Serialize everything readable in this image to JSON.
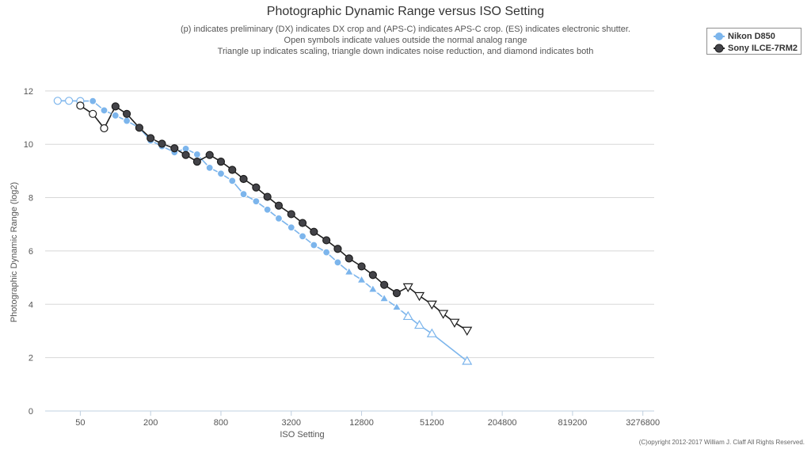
{
  "chart_data": {
    "type": "line",
    "title": "Photographic Dynamic Range versus ISO Setting",
    "subtitle_lines": [
      "(p) indicates preliminary (DX) indicates DX crop and (APS-C) indicates APS-C crop. (ES) indicates electronic shutter.",
      "Open symbols indicate values outside the normal analog range",
      "Triangle up indicates scaling, triangle down indicates noise reduction, and diamond indicates both"
    ],
    "xlabel": "ISO Setting",
    "ylabel": "Photographic Dynamic Range (log2)",
    "x_scale": "log2",
    "xlim": [
      25,
      4096000
    ],
    "x_ticks": [
      50,
      200,
      800,
      3200,
      12800,
      51200,
      204800,
      819200,
      3276800
    ],
    "ylim": [
      0,
      12.5
    ],
    "y_ticks": [
      0,
      2,
      4,
      6,
      8,
      10,
      12
    ],
    "grid": true,
    "legend_position": "top-right",
    "series": [
      {
        "name": "Nikon D850",
        "color": "#7cb5ec",
        "points": [
          {
            "x": 32,
            "y": 11.63,
            "m": "circle-open"
          },
          {
            "x": 40,
            "y": 11.63,
            "m": "circle-open"
          },
          {
            "x": 50,
            "y": 11.62,
            "m": "circle-open"
          },
          {
            "x": 64,
            "y": 11.62,
            "m": "circle"
          },
          {
            "x": 80,
            "y": 11.27,
            "m": "circle"
          },
          {
            "x": 100,
            "y": 11.08,
            "m": "circle"
          },
          {
            "x": 125,
            "y": 10.88,
            "m": "circle"
          },
          {
            "x": 160,
            "y": 10.62,
            "m": "circle"
          },
          {
            "x": 200,
            "y": 10.14,
            "m": "circle"
          },
          {
            "x": 250,
            "y": 9.93,
            "m": "circle"
          },
          {
            "x": 320,
            "y": 9.7,
            "m": "circle"
          },
          {
            "x": 400,
            "y": 9.83,
            "m": "circle"
          },
          {
            "x": 500,
            "y": 9.62,
            "m": "circle"
          },
          {
            "x": 640,
            "y": 9.12,
            "m": "circle"
          },
          {
            "x": 800,
            "y": 8.9,
            "m": "circle"
          },
          {
            "x": 1000,
            "y": 8.63,
            "m": "circle"
          },
          {
            "x": 1250,
            "y": 8.13,
            "m": "circle"
          },
          {
            "x": 1600,
            "y": 7.86,
            "m": "circle"
          },
          {
            "x": 2000,
            "y": 7.55,
            "m": "circle"
          },
          {
            "x": 2500,
            "y": 7.22,
            "m": "circle"
          },
          {
            "x": 3200,
            "y": 6.88,
            "m": "circle"
          },
          {
            "x": 4000,
            "y": 6.55,
            "m": "circle"
          },
          {
            "x": 5000,
            "y": 6.22,
            "m": "circle"
          },
          {
            "x": 6400,
            "y": 5.95,
            "m": "circle"
          },
          {
            "x": 8000,
            "y": 5.57,
            "m": "circle"
          },
          {
            "x": 10000,
            "y": 5.22,
            "m": "triangle-up"
          },
          {
            "x": 12800,
            "y": 4.92,
            "m": "triangle-up"
          },
          {
            "x": 16000,
            "y": 4.57,
            "m": "triangle-up"
          },
          {
            "x": 20000,
            "y": 4.22,
            "m": "triangle-up"
          },
          {
            "x": 25600,
            "y": 3.9,
            "m": "triangle-up"
          },
          {
            "x": 32000,
            "y": 3.55,
            "m": "triangle-up-open"
          },
          {
            "x": 40000,
            "y": 3.22,
            "m": "triangle-up-open"
          },
          {
            "x": 51200,
            "y": 2.9,
            "m": "triangle-up-open"
          },
          {
            "x": 102400,
            "y": 1.87,
            "m": "triangle-up-open"
          }
        ]
      },
      {
        "name": "Sony ILCE-7RM2",
        "color": "#434348",
        "points": [
          {
            "x": 50,
            "y": 11.45,
            "m": "circle-open"
          },
          {
            "x": 64,
            "y": 11.14,
            "m": "circle-open"
          },
          {
            "x": 80,
            "y": 10.6,
            "m": "circle-open"
          },
          {
            "x": 100,
            "y": 11.42,
            "m": "circle"
          },
          {
            "x": 125,
            "y": 11.14,
            "m": "circle"
          },
          {
            "x": 160,
            "y": 10.62,
            "m": "circle"
          },
          {
            "x": 200,
            "y": 10.23,
            "m": "circle"
          },
          {
            "x": 250,
            "y": 10.02,
            "m": "circle"
          },
          {
            "x": 320,
            "y": 9.85,
            "m": "circle"
          },
          {
            "x": 400,
            "y": 9.6,
            "m": "circle"
          },
          {
            "x": 500,
            "y": 9.35,
            "m": "circle"
          },
          {
            "x": 640,
            "y": 9.6,
            "m": "circle"
          },
          {
            "x": 800,
            "y": 9.35,
            "m": "circle"
          },
          {
            "x": 1000,
            "y": 9.04,
            "m": "circle"
          },
          {
            "x": 1250,
            "y": 8.7,
            "m": "circle"
          },
          {
            "x": 1600,
            "y": 8.38,
            "m": "circle"
          },
          {
            "x": 2000,
            "y": 8.03,
            "m": "circle"
          },
          {
            "x": 2500,
            "y": 7.7,
            "m": "circle"
          },
          {
            "x": 3200,
            "y": 7.38,
            "m": "circle"
          },
          {
            "x": 4000,
            "y": 7.05,
            "m": "circle"
          },
          {
            "x": 5000,
            "y": 6.72,
            "m": "circle"
          },
          {
            "x": 6400,
            "y": 6.4,
            "m": "circle"
          },
          {
            "x": 8000,
            "y": 6.08,
            "m": "circle"
          },
          {
            "x": 10000,
            "y": 5.72,
            "m": "circle"
          },
          {
            "x": 12800,
            "y": 5.42,
            "m": "circle"
          },
          {
            "x": 16000,
            "y": 5.1,
            "m": "circle"
          },
          {
            "x": 20000,
            "y": 4.73,
            "m": "circle"
          },
          {
            "x": 25600,
            "y": 4.42,
            "m": "circle"
          },
          {
            "x": 32000,
            "y": 4.65,
            "m": "triangle-down-open"
          },
          {
            "x": 40000,
            "y": 4.32,
            "m": "triangle-down-open"
          },
          {
            "x": 51200,
            "y": 4.0,
            "m": "triangle-down-open"
          },
          {
            "x": 64000,
            "y": 3.65,
            "m": "triangle-down-open"
          },
          {
            "x": 80000,
            "y": 3.32,
            "m": "triangle-down-open"
          },
          {
            "x": 102400,
            "y": 3.02,
            "m": "triangle-down-open"
          }
        ]
      }
    ]
  },
  "legend": {
    "items": [
      "Nikon D850",
      "Sony ILCE-7RM2"
    ]
  },
  "copyright": "(C)opyright 2012-2017 William J. Claff All Rights Reserved."
}
